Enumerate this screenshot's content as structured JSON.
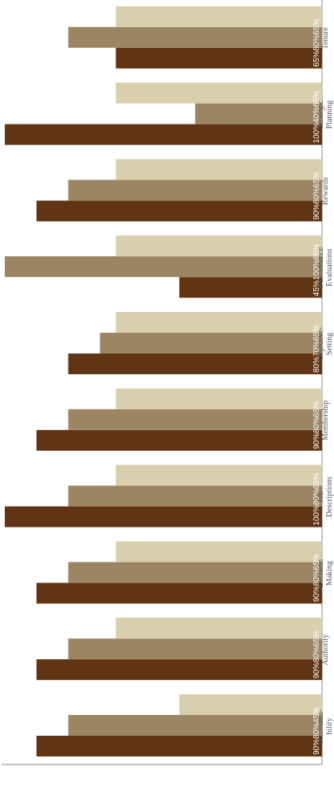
{
  "chart_data": {
    "type": "bar",
    "orientation": "horizontal",
    "categories": [
      "Accounta-\nbility",
      "Authority",
      "Decision\nMaking",
      "Job\nDescriptions",
      "Membership",
      "Objective-\nSetting",
      "Performance\nEvaluations",
      "Rewards",
      "Strategic\nPlanning",
      "Tenure"
    ],
    "series": [
      {
        "values": [
          90,
          90,
          90,
          100,
          90,
          80,
          45,
          90,
          100,
          65
        ]
      },
      {
        "values": [
          80,
          80,
          80,
          80,
          80,
          70,
          100,
          80,
          40,
          80
        ]
      },
      {
        "values": [
          45,
          65,
          65,
          65,
          65,
          65,
          65,
          65,
          65,
          65
        ]
      }
    ],
    "value_labels": [
      [
        "90%",
        "80%",
        "45%"
      ],
      [
        "90%",
        "80%",
        "65%"
      ],
      [
        "90%",
        "80%",
        "65%"
      ],
      [
        "100%",
        "80%",
        "65%"
      ],
      [
        "90%",
        "80%",
        "65%"
      ],
      [
        "80%",
        "70%",
        "65%"
      ],
      [
        "45%",
        "100%",
        "65%"
      ],
      [
        "90%",
        "80%",
        "65%"
      ],
      [
        "100%",
        "40%",
        "65%"
      ],
      [
        "65%",
        "80%",
        "65%"
      ]
    ],
    "colors": [
      "#613514",
      "#9c8563",
      "#dacfad"
    ],
    "grid": false,
    "legend": "none",
    "rotated": "90deg clockwise"
  }
}
